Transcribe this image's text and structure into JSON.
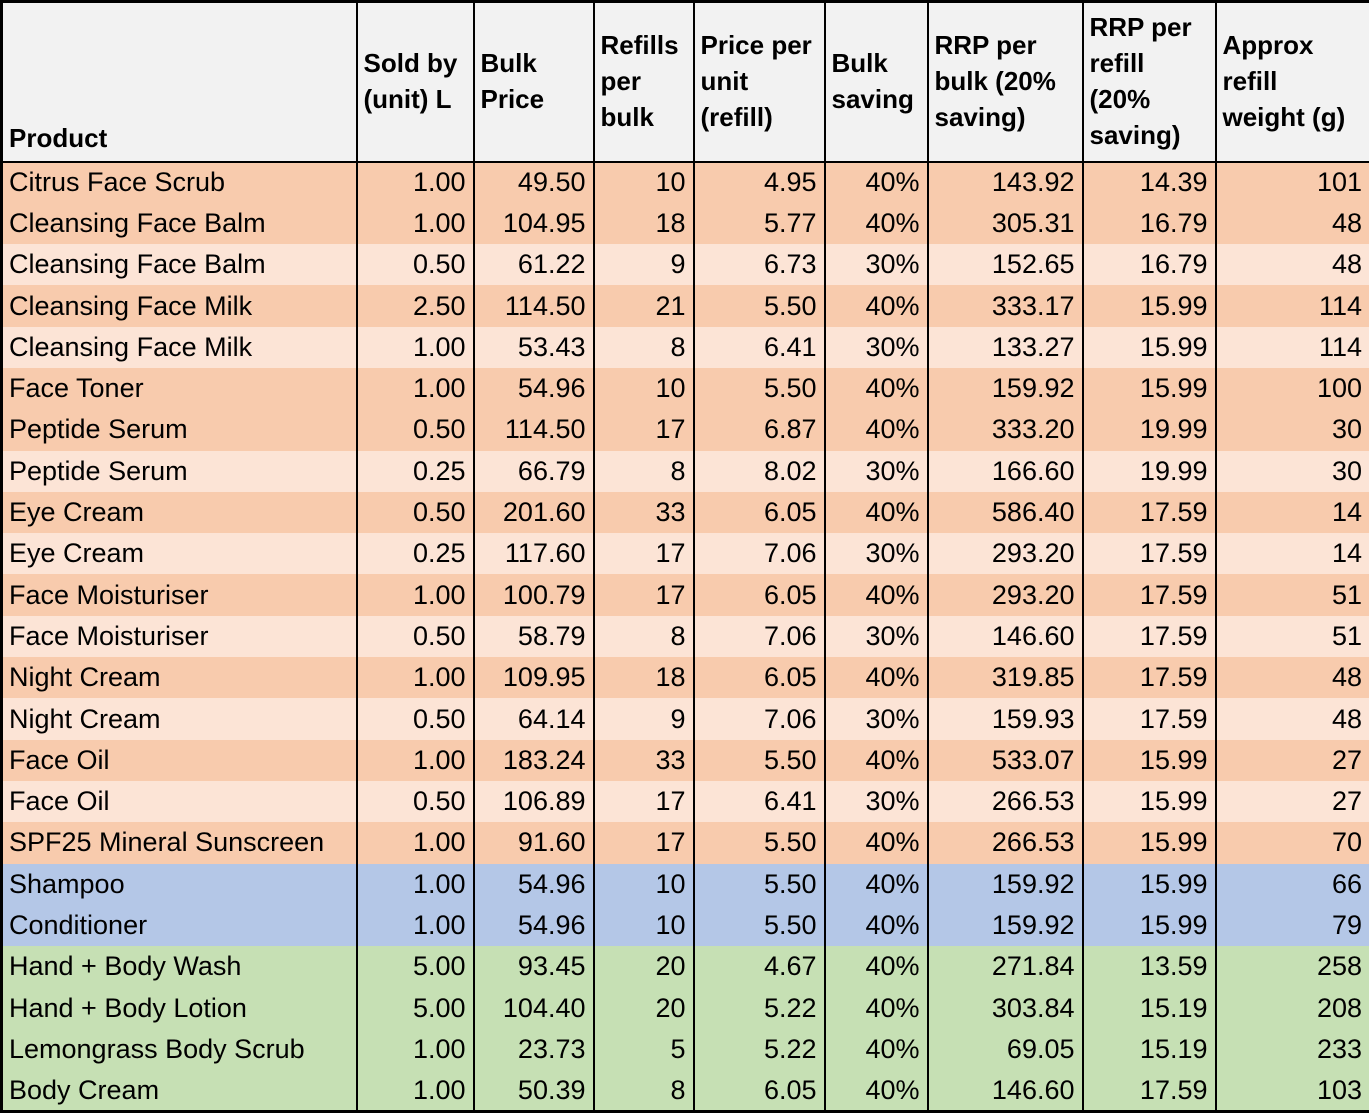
{
  "colors": {
    "header_bg": "#F2F2F2",
    "band_peach": "#F8CBAD",
    "band_peach_light": "#FCE4D6",
    "band_blue": "#B4C7E7",
    "band_green": "#C6E0B4",
    "border": "#000000",
    "text": "#000000"
  },
  "table": {
    "columns": [
      {
        "key": "product",
        "label": "Product"
      },
      {
        "key": "sold-by-unit",
        "label": "Sold by (unit) L"
      },
      {
        "key": "bulk-price",
        "label": "Bulk Price"
      },
      {
        "key": "refills-per-bulk",
        "label": "Refills per bulk"
      },
      {
        "key": "price-per-unit",
        "label": "Price per unit (refill)"
      },
      {
        "key": "bulk-saving",
        "label": "Bulk saving"
      },
      {
        "key": "rrp-per-bulk",
        "label": "RRP per bulk (20% saving)"
      },
      {
        "key": "rrp-per-refill",
        "label": "RRP per refill (20% saving)"
      },
      {
        "key": "approx-refill-weight",
        "label": "Approx refill weight (g)"
      }
    ],
    "rows": [
      {
        "band": "peach",
        "cells": [
          "Citrus Face Scrub",
          "1.00",
          "49.50",
          "10",
          "4.95",
          "40%",
          "143.92",
          "14.39",
          "101"
        ]
      },
      {
        "band": "peach",
        "cells": [
          "Cleansing Face Balm",
          "1.00",
          "104.95",
          "18",
          "5.77",
          "40%",
          "305.31",
          "16.79",
          "48"
        ]
      },
      {
        "band": "peach_light",
        "cells": [
          "Cleansing Face Balm",
          "0.50",
          "61.22",
          "9",
          "6.73",
          "30%",
          "152.65",
          "16.79",
          "48"
        ]
      },
      {
        "band": "peach",
        "cells": [
          "Cleansing Face Milk",
          "2.50",
          "114.50",
          "21",
          "5.50",
          "40%",
          "333.17",
          "15.99",
          "114"
        ]
      },
      {
        "band": "peach_light",
        "cells": [
          "Cleansing Face Milk",
          "1.00",
          "53.43",
          "8",
          "6.41",
          "30%",
          "133.27",
          "15.99",
          "114"
        ]
      },
      {
        "band": "peach",
        "cells": [
          "Face Toner",
          "1.00",
          "54.96",
          "10",
          "5.50",
          "40%",
          "159.92",
          "15.99",
          "100"
        ]
      },
      {
        "band": "peach",
        "cells": [
          "Peptide Serum",
          "0.50",
          "114.50",
          "17",
          "6.87",
          "40%",
          "333.20",
          "19.99",
          "30"
        ]
      },
      {
        "band": "peach_light",
        "cells": [
          "Peptide Serum",
          "0.25",
          "66.79",
          "8",
          "8.02",
          "30%",
          "166.60",
          "19.99",
          "30"
        ]
      },
      {
        "band": "peach",
        "cells": [
          "Eye Cream",
          "0.50",
          "201.60",
          "33",
          "6.05",
          "40%",
          "586.40",
          "17.59",
          "14"
        ]
      },
      {
        "band": "peach_light",
        "cells": [
          "Eye Cream",
          "0.25",
          "117.60",
          "17",
          "7.06",
          "30%",
          "293.20",
          "17.59",
          "14"
        ]
      },
      {
        "band": "peach",
        "cells": [
          "Face Moisturiser",
          "1.00",
          "100.79",
          "17",
          "6.05",
          "40%",
          "293.20",
          "17.59",
          "51"
        ]
      },
      {
        "band": "peach_light",
        "cells": [
          "Face Moisturiser",
          "0.50",
          "58.79",
          "8",
          "7.06",
          "30%",
          "146.60",
          "17.59",
          "51"
        ]
      },
      {
        "band": "peach",
        "cells": [
          "Night Cream",
          "1.00",
          "109.95",
          "18",
          "6.05",
          "40%",
          "319.85",
          "17.59",
          "48"
        ]
      },
      {
        "band": "peach_light",
        "cells": [
          "Night Cream",
          "0.50",
          "64.14",
          "9",
          "7.06",
          "30%",
          "159.93",
          "17.59",
          "48"
        ]
      },
      {
        "band": "peach",
        "cells": [
          "Face Oil",
          "1.00",
          "183.24",
          "33",
          "5.50",
          "40%",
          "533.07",
          "15.99",
          "27"
        ]
      },
      {
        "band": "peach_light",
        "cells": [
          "Face Oil",
          "0.50",
          "106.89",
          "17",
          "6.41",
          "30%",
          "266.53",
          "15.99",
          "27"
        ]
      },
      {
        "band": "peach",
        "cells": [
          "SPF25 Mineral Sunscreen",
          "1.00",
          "91.60",
          "17",
          "5.50",
          "40%",
          "266.53",
          "15.99",
          "70"
        ]
      },
      {
        "band": "blue",
        "cells": [
          "Shampoo",
          "1.00",
          "54.96",
          "10",
          "5.50",
          "40%",
          "159.92",
          "15.99",
          "66"
        ]
      },
      {
        "band": "blue",
        "cells": [
          "Conditioner",
          "1.00",
          "54.96",
          "10",
          "5.50",
          "40%",
          "159.92",
          "15.99",
          "79"
        ]
      },
      {
        "band": "green",
        "cells": [
          "Hand + Body Wash",
          "5.00",
          "93.45",
          "20",
          "4.67",
          "40%",
          "271.84",
          "13.59",
          "258"
        ]
      },
      {
        "band": "green",
        "cells": [
          "Hand + Body Lotion",
          "5.00",
          "104.40",
          "20",
          "5.22",
          "40%",
          "303.84",
          "15.19",
          "208"
        ]
      },
      {
        "band": "green",
        "cells": [
          "Lemongrass Body Scrub",
          "1.00",
          "23.73",
          "5",
          "5.22",
          "40%",
          "69.05",
          "15.19",
          "233"
        ]
      },
      {
        "band": "green",
        "cells": [
          "Body Cream",
          "1.00",
          "50.39",
          "8",
          "6.05",
          "40%",
          "146.60",
          "17.59",
          "103"
        ]
      }
    ]
  }
}
